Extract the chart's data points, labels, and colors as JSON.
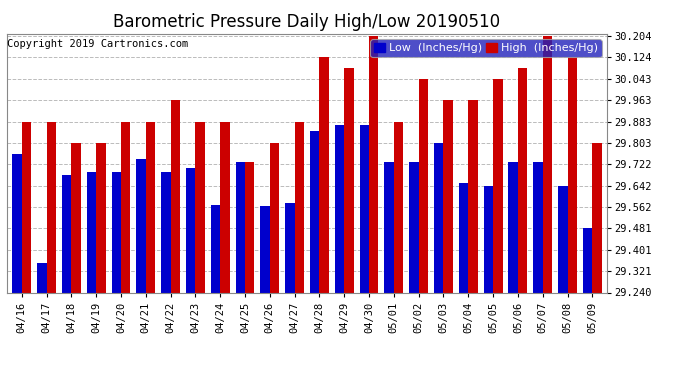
{
  "title": "Barometric Pressure Daily High/Low 20190510",
  "copyright": "Copyright 2019 Cartronics.com",
  "legend_low": "Low  (Inches/Hg)",
  "legend_high": "High  (Inches/Hg)",
  "dates": [
    "04/16",
    "04/17",
    "04/18",
    "04/19",
    "04/20",
    "04/21",
    "04/22",
    "04/23",
    "04/24",
    "04/25",
    "04/26",
    "04/27",
    "04/28",
    "04/29",
    "04/30",
    "05/01",
    "05/02",
    "05/03",
    "05/04",
    "05/05",
    "05/06",
    "05/07",
    "05/08",
    "05/09"
  ],
  "low": [
    29.762,
    29.35,
    29.68,
    29.692,
    29.692,
    29.742,
    29.692,
    29.71,
    29.57,
    29.73,
    29.565,
    29.578,
    29.848,
    29.868,
    29.868,
    29.73,
    29.73,
    29.803,
    29.65,
    29.642,
    29.73,
    29.73,
    29.642,
    29.481
  ],
  "high": [
    29.883,
    29.883,
    29.803,
    29.803,
    29.883,
    29.883,
    29.963,
    29.883,
    29.883,
    29.73,
    29.803,
    29.883,
    30.124,
    30.083,
    30.204,
    29.883,
    30.043,
    29.963,
    29.963,
    30.043,
    30.083,
    30.204,
    30.124,
    29.803
  ],
  "ymin": 29.24,
  "ymax": 30.213,
  "yticks": [
    29.24,
    29.321,
    29.401,
    29.481,
    29.562,
    29.642,
    29.722,
    29.803,
    29.883,
    29.963,
    30.043,
    30.124,
    30.204
  ],
  "bar_color_low": "#0000cc",
  "bar_color_high": "#cc0000",
  "bg_color": "#ffffff",
  "grid_color": "#bbbbbb",
  "title_fontsize": 12,
  "copy_fontsize": 7.5,
  "legend_fontsize": 8,
  "tick_fontsize": 7.5,
  "bar_width": 0.38
}
